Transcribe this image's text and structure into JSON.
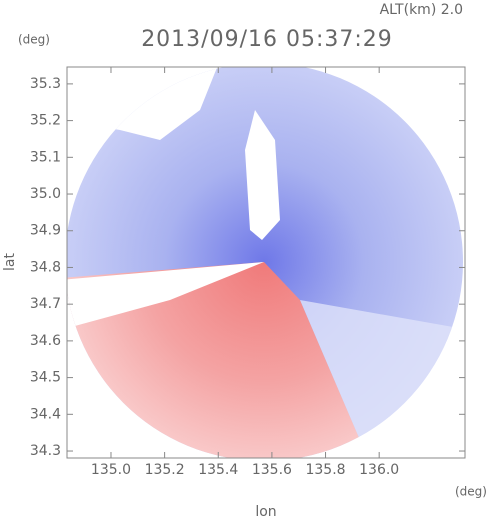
{
  "chart_data": {
    "type": "radar",
    "title": "2013/09/16 05:37:29",
    "annotation": "ALT(km) 2.0",
    "x_label": "lon",
    "x_unit": "(deg)",
    "y_label": "lat",
    "y_unit": "(deg)",
    "xlim": [
      134.836,
      136.32
    ],
    "xticks": [
      {
        "value": 135.0,
        "label": "135.0"
      },
      135.2,
      135.4,
      135.6,
      135.8,
      {
        "value": 136.0,
        "label": "136.0"
      }
    ],
    "ylim": [
      34.281,
      35.346
    ],
    "yticks": [
      34.3,
      34.4,
      34.5,
      34.6,
      34.7,
      34.8,
      34.9,
      {
        "value": 35.0,
        "label": "35.0"
      },
      35.1,
      35.2,
      35.3
    ]
  }
}
